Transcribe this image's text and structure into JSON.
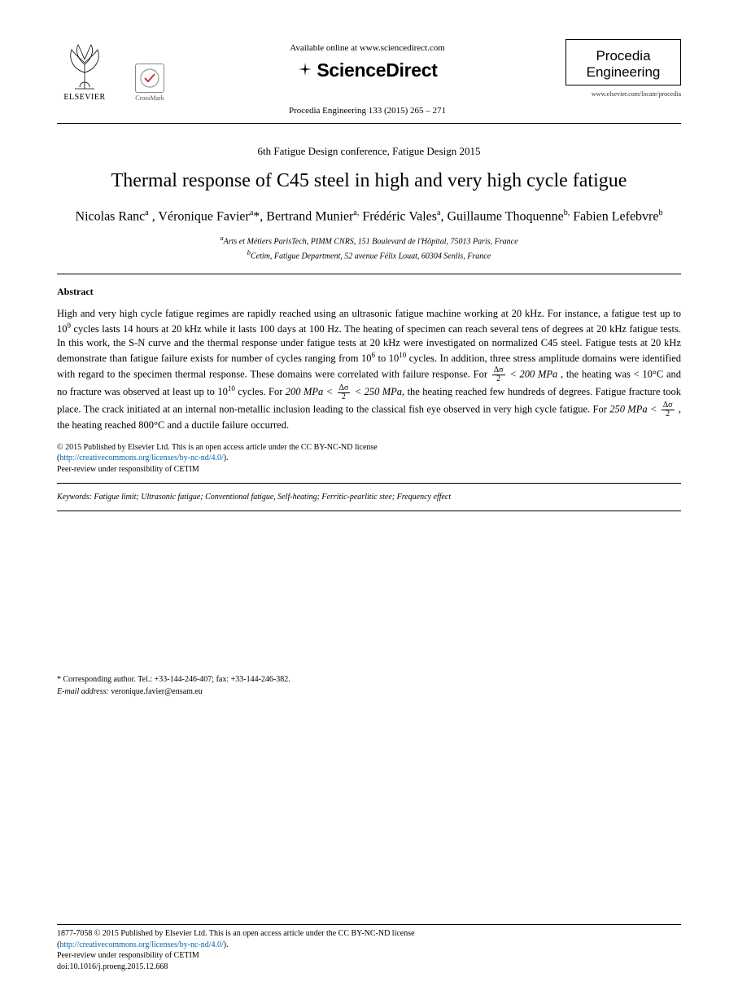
{
  "header": {
    "available_line": "Available online at www.sciencedirect.com",
    "sd_brand": "ScienceDirect",
    "citation": "Procedia Engineering 133 (2015) 265 – 271",
    "journal_name_line1": "Procedia",
    "journal_name_line2": "Engineering",
    "locate_url": "www.elsevier.com/locate/procedia",
    "elsevier_label": "ELSEVIER",
    "crossmark_label": "CrossMark"
  },
  "conference": "6th Fatigue Design conference, Fatigue Design 2015",
  "title": "Thermal response of C45 steel in high and very high cycle fatigue",
  "authors_html": "Nicolas Ranc<sup>a</sup> , Véronique Favier<sup>a</sup>*, Bertrand Munier<sup>a,</sup> Frédéric Vales<sup>a</sup>, Guillaume Thoquenne<sup>b,</sup> Fabien Lefebvre<sup>b</sup>",
  "affiliations": {
    "a": "Arts et Métiers ParisTech, PIMM CNRS, 151 Boulevard de l'Hôpital, 75013 Paris, France",
    "b": "Cetim, Fatigue Department, 52 avenue Félix Louat, 60304 Senlis, France"
  },
  "abstract": {
    "heading": "Abstract",
    "p1_a": "High and very high cycle fatigue regimes are rapidly reached using an ultrasonic fatigue machine working at 20 kHz. For instance, a fatigue test up to 10",
    "p1_a_sup": "9",
    "p1_b": " cycles lasts 14 hours at 20 kHz while it lasts 100 days at 100 Hz. The heating of specimen can reach several tens of degrees at 20 kHz fatigue tests. In this work, the S-N curve and the thermal response under fatigue tests at 20 kHz were investigated on normalized C45 steel. Fatigue tests at 20 kHz demonstrate than fatigue failure exists for number of cycles ranging from 10",
    "p1_b_sup": "6",
    "p1_c": " to 10",
    "p1_c_sup": "10",
    "p1_d": " cycles. In addition, three stress amplitude domains were identified with regard to the specimen thermal response. These domains were correlated with failure response. For ",
    "cond1_lhs_n": "Δσ",
    "cond1_lhs_d": "2",
    "cond1_op": " < 200 MPa",
    "p1_e": " , the heating was < 10°C and no fracture was observed at least up to 10",
    "p1_e_sup": "10",
    "p1_f": " cycles. For ",
    "cond2_left": "200 MPa < ",
    "cond2_n": "Δσ",
    "cond2_d": "2",
    "cond2_right": " < 250 MPa",
    "p1_g": ", the heating reached few hundreds of degrees. Fatigue fracture took place. The crack initiated at an internal non-metallic inclusion leading to the classical fish eye observed in very high cycle fatigue. For ",
    "cond3_left": "250 MPa < ",
    "cond3_n": "Δσ",
    "cond3_d": "2",
    "p1_h": " , the heating reached 800°C and a ductile failure occurred."
  },
  "copyright": {
    "line1": "© 2015 Published by Elsevier Ltd. This is an open access article under the CC BY-NC-ND license",
    "link_text": "http://creativecommons.org/licenses/by-nc-nd/4.0/",
    "line2": "Peer-review under responsibility of CETIM"
  },
  "keywords": {
    "label": "Keywords:",
    "text": " Fatigue limit; Ultrasonic fatigue; Conventional fatigue, Self-heating; Ferritic-pearlitic stee; Frequency effect"
  },
  "corresponding": {
    "line1": "* Corresponding author. Tel.: +33-144-246-407; fax: +33-144-246-382.",
    "email_label": "E-mail address:",
    "email": "  veronique.favier@ensam.eu"
  },
  "footer": {
    "issn_line": "1877-7058 © 2015 Published by Elsevier Ltd. This is an open access article under the CC BY-NC-ND license",
    "link_text": "http://creativecommons.org/licenses/by-nc-nd/4.0/",
    "peer": "Peer-review under responsibility of CETIM",
    "doi": "doi:10.1016/j.proeng.2015.12.668"
  },
  "colors": {
    "text": "#000000",
    "link": "#0066aa",
    "rule": "#000000",
    "background": "#ffffff"
  },
  "fonts": {
    "body_family": "Times New Roman",
    "title_size_pt": 24,
    "authors_size_pt": 16,
    "body_size_pt": 12.5,
    "small_size_pt": 10
  }
}
